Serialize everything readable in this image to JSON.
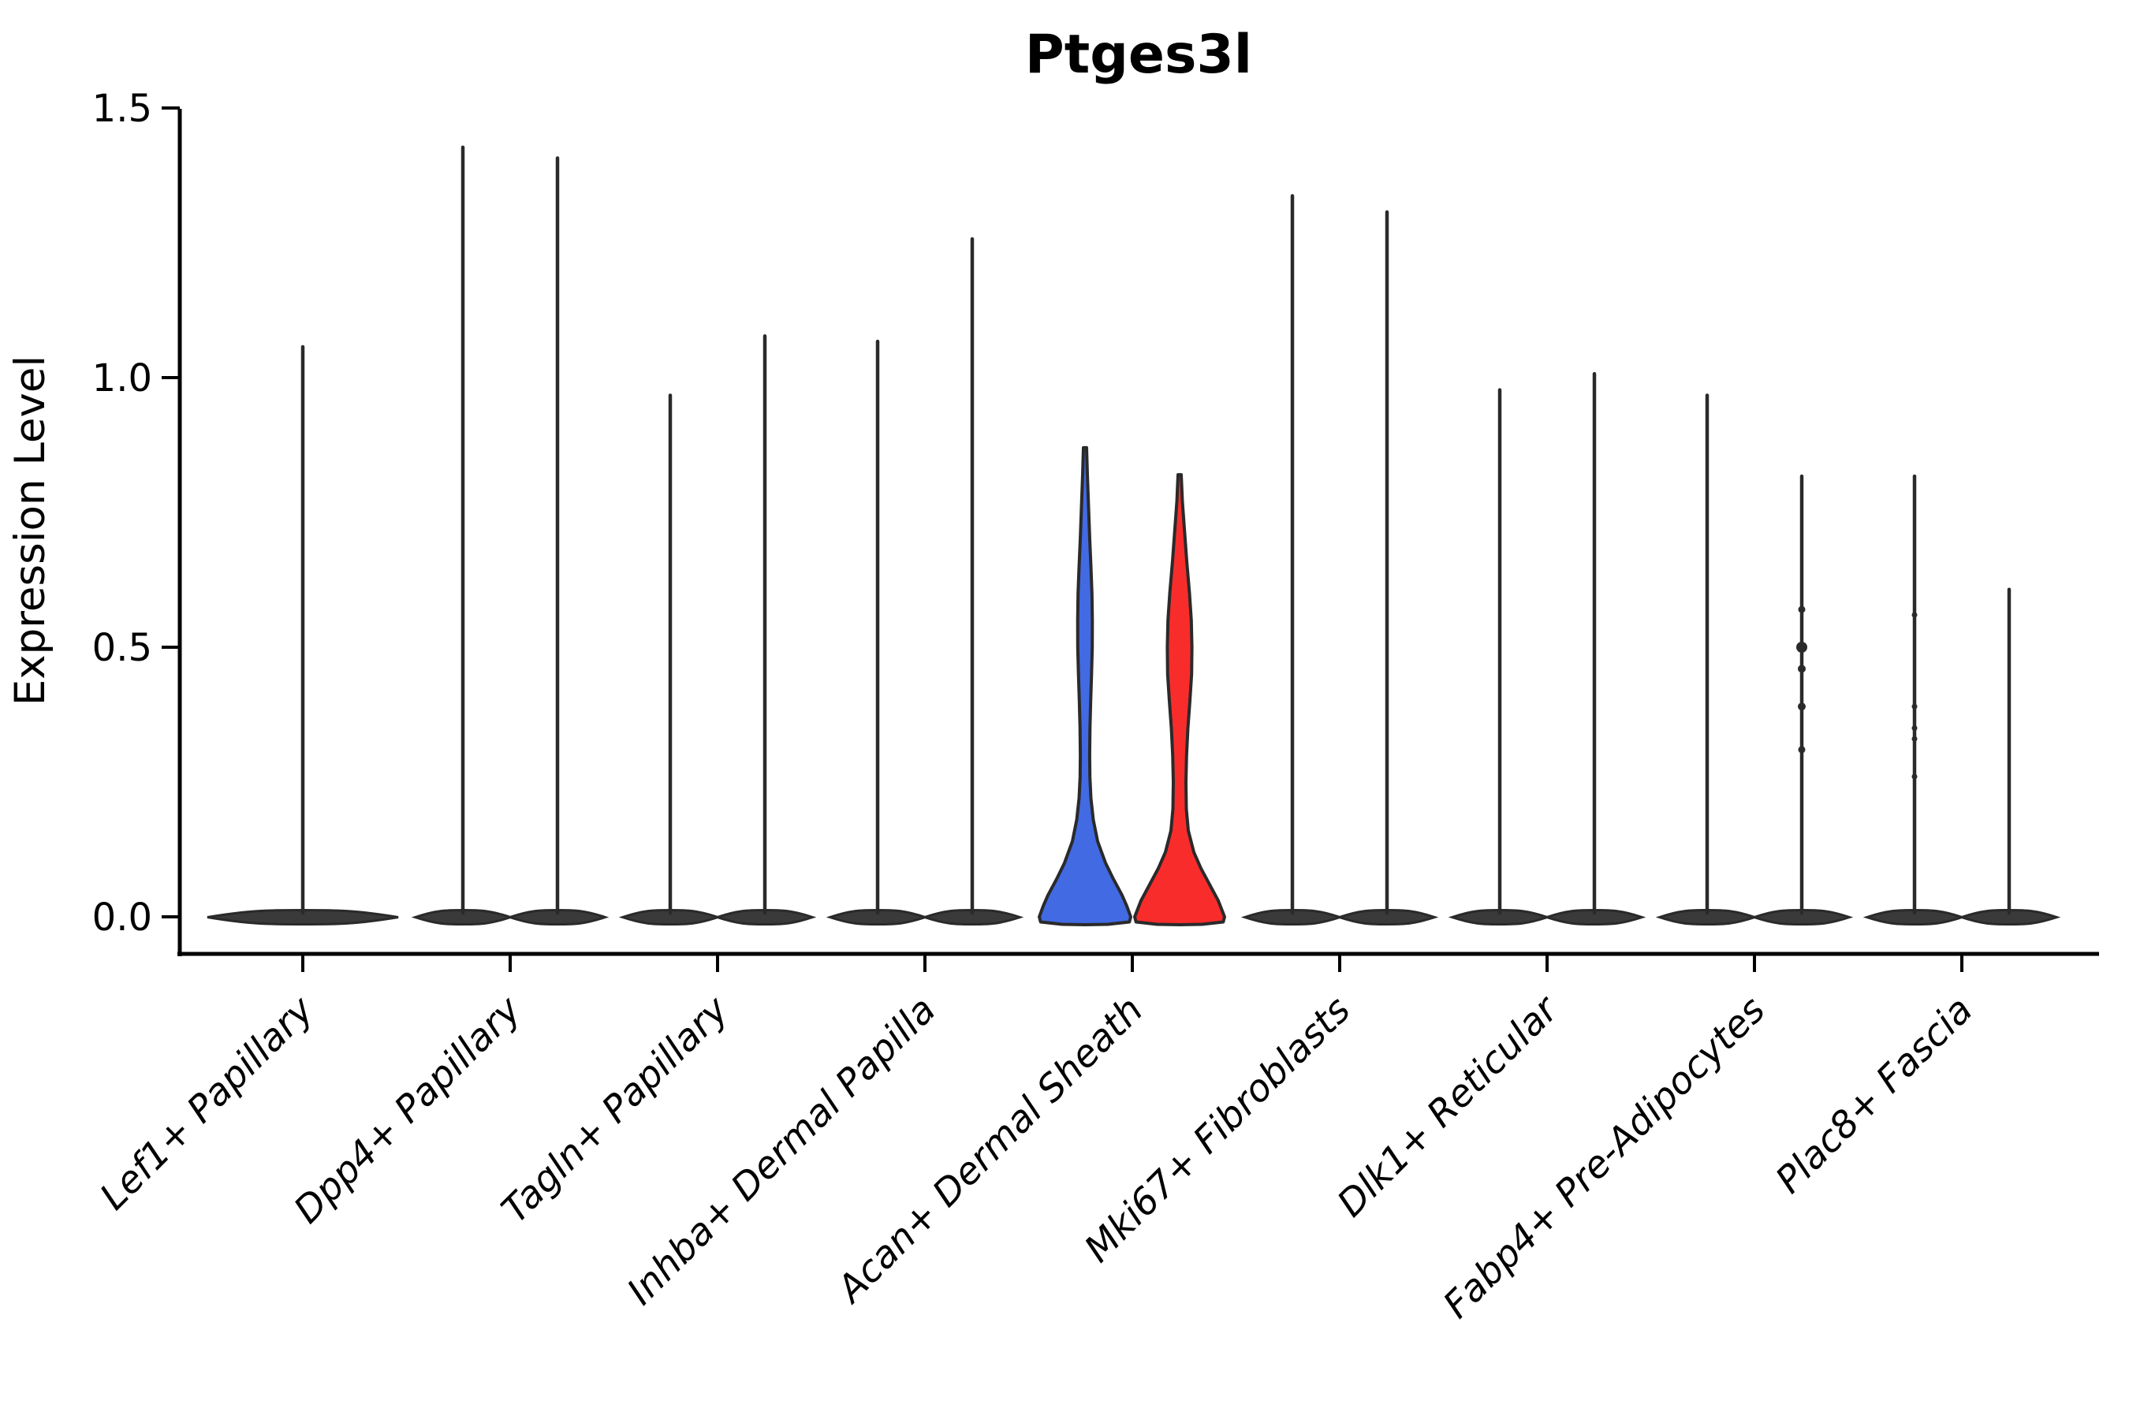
{
  "chart_data": {
    "type": "violin",
    "title": "Ptges3l",
    "ylabel": "Expression Level",
    "xlabel": "",
    "ylim": [
      0.0,
      1.5
    ],
    "yticks": [
      0.0,
      0.5,
      1.0,
      1.5
    ],
    "ytick_labels": [
      "0.0",
      "0.5",
      "1.0",
      "1.5"
    ],
    "grid": false,
    "legend": "none",
    "outline_color": "#2a2a2a",
    "base_fill": "#3a3a3a",
    "split_colors": {
      "group1_blue": "#426AE3",
      "group2_red": "#F92C2C"
    },
    "categories": [
      "Lef1+ Papillary",
      "Dpp4+ Papillary",
      "Tagln+ Papillary",
      "Inhba+ Dermal Papilla",
      "Acan+ Dermal Sheath",
      "Mki67+ Fibroblasts",
      "Dlk1+ Reticular",
      "Fabp4+ Pre-Adipocytes",
      "Plac8+ Fascia"
    ],
    "groups": [
      {
        "category": "Lef1+ Papillary",
        "violins": [
          {
            "side": "center",
            "max": 1.06,
            "dots": []
          }
        ]
      },
      {
        "category": "Dpp4+ Papillary",
        "violins": [
          {
            "side": "left",
            "max": 1.43,
            "dots": []
          },
          {
            "side": "right",
            "max": 1.41,
            "dots": []
          }
        ]
      },
      {
        "category": "Tagln+ Papillary",
        "violins": [
          {
            "side": "left",
            "max": 0.97,
            "dots": []
          },
          {
            "side": "right",
            "max": 1.08,
            "dots": []
          }
        ]
      },
      {
        "category": "Inhba+ Dermal Papilla",
        "violins": [
          {
            "side": "left",
            "max": 1.07,
            "dots": []
          },
          {
            "side": "right",
            "max": 1.26,
            "dots": []
          }
        ]
      },
      {
        "category": "Acan+ Dermal Sheath",
        "violins": [
          {
            "side": "left",
            "max": 0.87,
            "fill": "#426AE3",
            "dots": [],
            "profile": [
              [
                0.87,
                2
              ],
              [
                0.82,
                3
              ],
              [
                0.76,
                4.5
              ],
              [
                0.7,
                6
              ],
              [
                0.65,
                7.5
              ],
              [
                0.6,
                8.8
              ],
              [
                0.55,
                9.3
              ],
              [
                0.5,
                9.2
              ],
              [
                0.45,
                8.3
              ],
              [
                0.4,
                7.2
              ],
              [
                0.35,
                6.3
              ],
              [
                0.3,
                5.9
              ],
              [
                0.26,
                6.2
              ],
              [
                0.22,
                7.5
              ],
              [
                0.18,
                10.5
              ],
              [
                0.14,
                16
              ],
              [
                0.1,
                26
              ],
              [
                0.07,
                36
              ],
              [
                0.04,
                47
              ],
              [
                0.02,
                53
              ],
              [
                0.0,
                58
              ]
            ]
          },
          {
            "side": "right",
            "max": 0.82,
            "fill": "#F92C2C",
            "dots": [],
            "profile": [
              [
                0.82,
                2
              ],
              [
                0.77,
                3.5
              ],
              [
                0.72,
                6
              ],
              [
                0.66,
                9
              ],
              [
                0.6,
                12.5
              ],
              [
                0.55,
                14.8
              ],
              [
                0.5,
                15.6
              ],
              [
                0.45,
                15.2
              ],
              [
                0.4,
                13
              ],
              [
                0.35,
                10.5
              ],
              [
                0.3,
                8.8
              ],
              [
                0.25,
                8.0
              ],
              [
                0.2,
                8.5
              ],
              [
                0.16,
                11
              ],
              [
                0.12,
                18
              ],
              [
                0.09,
                27
              ],
              [
                0.06,
                38
              ],
              [
                0.03,
                49
              ],
              [
                0.0,
                57
              ]
            ]
          }
        ]
      },
      {
        "category": "Mki67+ Fibroblasts",
        "violins": [
          {
            "side": "left",
            "max": 1.34,
            "dots": []
          },
          {
            "side": "right",
            "max": 1.31,
            "dots": []
          }
        ]
      },
      {
        "category": "Dlk1+ Reticular",
        "violins": [
          {
            "side": "left",
            "max": 0.98,
            "dots": []
          },
          {
            "side": "right",
            "max": 1.01,
            "dots": []
          }
        ]
      },
      {
        "category": "Fabp4+ Pre-Adipocytes",
        "violins": [
          {
            "side": "left",
            "max": 0.97,
            "dots": []
          },
          {
            "side": "right",
            "max": 0.82,
            "dots": [
              {
                "v": 0.57,
                "r": 4.5
              },
              {
                "v": 0.5,
                "r": 7
              },
              {
                "v": 0.46,
                "r": 5
              },
              {
                "v": 0.39,
                "r": 5
              },
              {
                "v": 0.31,
                "r": 4.5
              }
            ]
          }
        ]
      },
      {
        "category": "Plac8+ Fascia",
        "violins": [
          {
            "side": "left",
            "max": 0.82,
            "dots": [
              {
                "v": 0.56,
                "r": 3.5
              },
              {
                "v": 0.39,
                "r": 3.5
              },
              {
                "v": 0.35,
                "r": 3.5
              },
              {
                "v": 0.33,
                "r": 3.5
              },
              {
                "v": 0.26,
                "r": 3.5
              }
            ]
          },
          {
            "side": "right",
            "max": 0.61,
            "dots": []
          }
        ]
      }
    ]
  }
}
